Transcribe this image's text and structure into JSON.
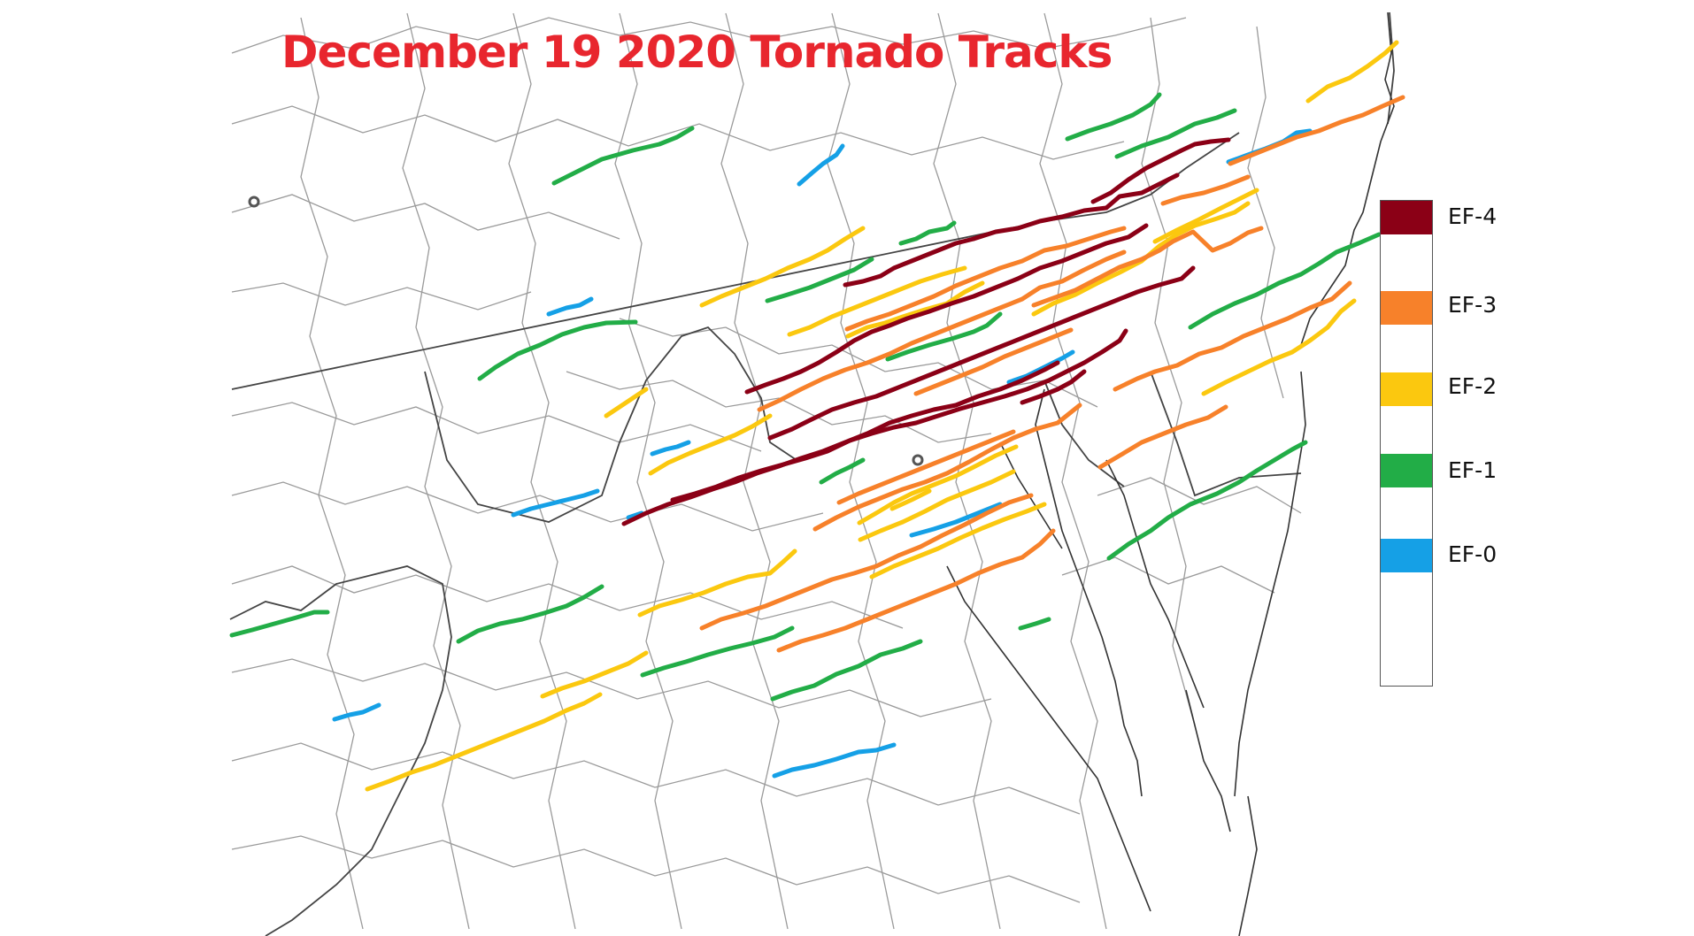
{
  "title": "December 19 2020 Tornado Tracks",
  "legend": [
    {
      "label": "EF-4",
      "color": "#8b0016"
    },
    {
      "label": "EF-3",
      "color": "#f7812a"
    },
    {
      "label": "EF-2",
      "color": "#fbc80f"
    },
    {
      "label": "EF-1",
      "color": "#22ad47"
    },
    {
      "label": "EF-0",
      "color": "#15a0e6"
    }
  ]
}
